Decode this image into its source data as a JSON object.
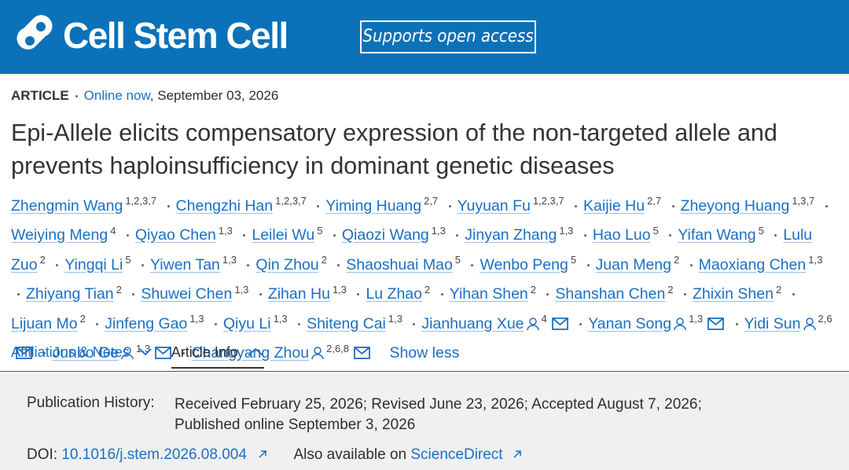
{
  "header": {
    "journal": "Cell Stem Cell",
    "badge": "Supports open access"
  },
  "article": {
    "type": "ARTICLE",
    "status": "Online now",
    "date": ", September 03, 2026",
    "title": "Epi-Allele elicits compensatory expression of the non-targeted allele and prevents haploinsufficiency in dominant genetic diseases",
    "authors": [
      {
        "name": "Zhengmin Wang",
        "aff": "1,2,3,7"
      },
      {
        "name": "Chengzhi Han",
        "aff": "1,2,3,7"
      },
      {
        "name": "Yiming Huang",
        "aff": "2,7"
      },
      {
        "name": "Yuyuan Fu",
        "aff": "1,2,3,7"
      },
      {
        "name": "Kaijie Hu",
        "aff": "2,7"
      },
      {
        "name": "Zheyong Huang",
        "aff": "1,3,7"
      },
      {
        "name": "Weiying Meng",
        "aff": "4"
      },
      {
        "name": "Qiyao Chen",
        "aff": "1,3"
      },
      {
        "name": "Leilei Wu",
        "aff": "5"
      },
      {
        "name": "Qiaozi Wang",
        "aff": "1,3"
      },
      {
        "name": "Jinyan Zhang",
        "aff": "1,3"
      },
      {
        "name": "Hao Luo",
        "aff": "5"
      },
      {
        "name": "Yifan Wang",
        "aff": "5"
      },
      {
        "name": "Lulu Zuo",
        "aff": "2"
      },
      {
        "name": "Yingqi Li",
        "aff": "5"
      },
      {
        "name": "Yiwen Tan",
        "aff": "1,3"
      },
      {
        "name": "Qin Zhou",
        "aff": "2"
      },
      {
        "name": "Shaoshuai Mao",
        "aff": "5"
      },
      {
        "name": "Wenbo Peng",
        "aff": "5"
      },
      {
        "name": "Juan Meng",
        "aff": "2"
      },
      {
        "name": "Maoxiang Chen",
        "aff": "1,3"
      },
      {
        "name": "Zhiyang Tian",
        "aff": "2"
      },
      {
        "name": "Shuwei Chen",
        "aff": "1,3"
      },
      {
        "name": "Zihan Hu",
        "aff": "1,3"
      },
      {
        "name": "Lu Zhao",
        "aff": "2"
      },
      {
        "name": "Yihan Shen",
        "aff": "2"
      },
      {
        "name": "Shanshan Chen",
        "aff": "2"
      },
      {
        "name": "Zhixin Shen",
        "aff": "2"
      },
      {
        "name": "Lijuan Mo",
        "aff": "2"
      },
      {
        "name": "Jinfeng Gao",
        "aff": "1,3"
      },
      {
        "name": "Qiyu Li",
        "aff": "1,3"
      },
      {
        "name": "Shiteng Cai",
        "aff": "1,3"
      },
      {
        "name": "Jianhuang Xue",
        "aff": "4",
        "corresponding": true
      },
      {
        "name": "Yanan Song",
        "aff": "1,3",
        "corresponding": true
      },
      {
        "name": "Yidi Sun",
        "aff": "2,6",
        "corresponding": true
      },
      {
        "name": "Junbo Ge",
        "aff": "1,3",
        "corresponding": true
      },
      {
        "name": "Changyang Zhou",
        "aff": "2,6,8",
        "corresponding": true
      }
    ],
    "show_less": "Show less"
  },
  "tabs": [
    "Affiliations & Notes",
    "Article Info"
  ],
  "info": {
    "history_label": "Publication History:",
    "history": "Received February 25, 2026; Revised June 23, 2026; Accepted August 7, 2026; Published online September 3, 2026",
    "doi_label": "DOI:",
    "doi": "10.1016/j.stem.2026.08.004",
    "also_label": "Also available on",
    "also_link": "ScienceDirect"
  }
}
